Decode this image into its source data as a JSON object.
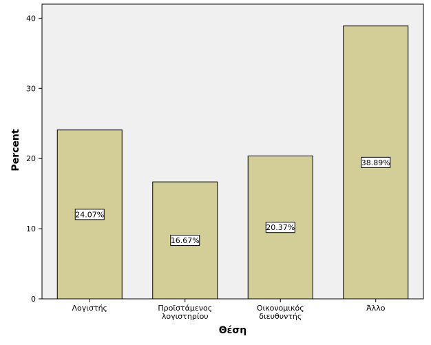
{
  "chart_data": {
    "type": "bar",
    "categories": [
      "Λογιστής",
      "Προϊστάμενος λογιστηρίου",
      "Οικονομικός διευθυντής",
      "Άλλο"
    ],
    "category_label_lines": [
      [
        "Λογιστής"
      ],
      [
        "Προϊστάμενος",
        "λογιστηρίου"
      ],
      [
        "Οικονομικός",
        "διευθυντής"
      ],
      [
        "Άλλο"
      ]
    ],
    "values": [
      24.07,
      16.67,
      20.37,
      38.89
    ],
    "data_labels": [
      "24.07%",
      "16.67%",
      "20.37%",
      "38.89%"
    ],
    "xlabel": "Θέση",
    "ylabel": "Percent",
    "ylim": [
      0,
      42
    ],
    "yticks": [
      0,
      10,
      20,
      30,
      40
    ],
    "grid": false,
    "colors": {
      "plot_background": "#f0f0f0",
      "bar_fill": "#d3ce97",
      "bar_stroke": "#000000",
      "label_box": "#ffffff"
    }
  }
}
